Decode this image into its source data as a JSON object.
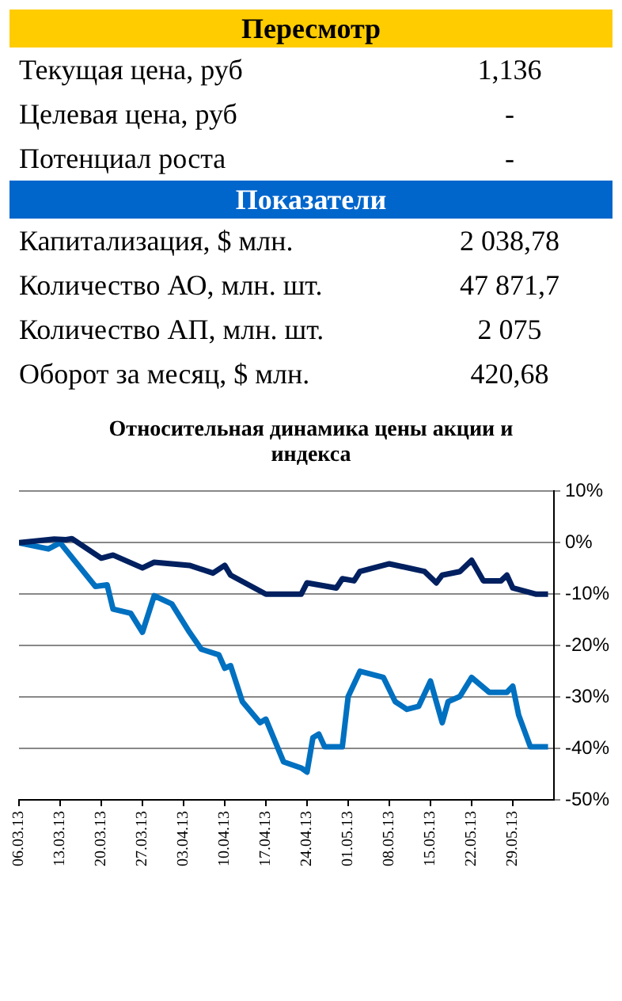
{
  "chart_data": [
    {
      "type": "other",
      "title": "Пересмотр",
      "color": "#ffcc00",
      "annotations": [
        "Текущая цена, руб",
        "1,136",
        "Целевая цена, руб",
        "-",
        "Потенциал роста",
        "-"
      ]
    },
    {
      "type": "other",
      "title": "Показатели",
      "color": "#0066cc",
      "annotations": [
        "Капитализация, $ млн.",
        "2 038,78",
        "Количество АО, млн. шт.",
        "47 871,7",
        "Количество АП, млн. шт.",
        "2 075",
        "Оборот за месяц, $ млн.",
        "420,68"
      ]
    },
    {
      "type": "line",
      "title": "Относительная динамика цены акции и индекса",
      "ylim": [
        -50,
        10
      ],
      "yticks": [
        {
          "value": 10,
          "label": "10%"
        },
        {
          "value": 0,
          "label": "0%"
        },
        {
          "value": -10,
          "label": "-10%"
        },
        {
          "value": -20,
          "label": "-20%"
        },
        {
          "value": -30,
          "label": "-30%"
        },
        {
          "value": -40,
          "label": "-40%"
        },
        {
          "value": -50,
          "label": "-50%"
        }
      ],
      "xlim": [
        "--03-06",
        "--06-05"
      ],
      "xticks": [
        {
          "value": "--03-06",
          "label": "06.03.13"
        },
        {
          "value": "--03-13",
          "label": "13.03.13"
        },
        {
          "value": "--03-20",
          "label": "20.03.13"
        },
        {
          "value": "--03-27",
          "label": "27.03.13"
        },
        {
          "value": "--04-03",
          "label": "03.04.13"
        },
        {
          "value": "--04-10",
          "label": "10.04.13"
        },
        {
          "value": "--04-17",
          "label": "17.04.13"
        },
        {
          "value": "--04-24",
          "label": "24.04.13"
        },
        {
          "value": "--05-01",
          "label": "01.05.13"
        },
        {
          "value": "--05-08",
          "label": "08.05.13"
        },
        {
          "value": "--05-15",
          "label": "15.05.13"
        },
        {
          "value": "--05-22",
          "label": "22.05.13"
        },
        {
          "value": "--05-29",
          "label": "29.05.13"
        }
      ],
      "grid": "y",
      "marker": "none",
      "series": [
        {
          "color": "#002060",
          "x": [
            "--03-06",
            "--03-12",
            "--03-14",
            "--03-15",
            "--03-20",
            "--03-22",
            "--03-27",
            "--03-29",
            "--04-04",
            "--04-08",
            "--04-10",
            "--04-11",
            "--04-17",
            "--04-23",
            "--04-24",
            "--04-29",
            "--04-30",
            "--05-02",
            "--05-03",
            "--05-08",
            "--05-14",
            "--05-16",
            "--05-17",
            "--05-20",
            "--05-22",
            "--05-24",
            "--05-27",
            "--05-28",
            "--05-29",
            "--06-02",
            "--06-04"
          ],
          "values": [
            0,
            0.7,
            0.6,
            0.8,
            -3,
            -2.4,
            -4.9,
            -3.8,
            -4.4,
            -5.9,
            -4.4,
            -6.3,
            -10,
            -10,
            -7.8,
            -8.8,
            -7,
            -7.4,
            -5.6,
            -4.1,
            -5.6,
            -7.8,
            -6.3,
            -5.6,
            -3.4,
            -7.4,
            -7.4,
            -6.3,
            -8.8,
            -10,
            -10
          ]
        },
        {
          "color": "#0070c0",
          "x": [
            "--03-06",
            "--03-11",
            "--03-13",
            "--03-19",
            "--03-21",
            "--03-22",
            "--03-25",
            "--03-27",
            "--03-29",
            "--04-01",
            "--04-04",
            "--04-06",
            "--04-09",
            "--04-10",
            "--04-11",
            "--04-13",
            "--04-16",
            "--04-17",
            "--04-20",
            "--04-23",
            "--04-24",
            "--04-25",
            "--04-26",
            "--04-27",
            "--04-30",
            "--05-01",
            "--05-03",
            "--05-07",
            "--05-09",
            "--05-11",
            "--05-13",
            "--05-15",
            "--05-17",
            "--05-18",
            "--05-20",
            "--05-22",
            "--05-25",
            "--05-28",
            "--05-29",
            "--05-30",
            "--06-01",
            "--06-04"
          ],
          "values": [
            0,
            -1.2,
            0,
            -8.5,
            -8.2,
            -12.9,
            -13.7,
            -17.4,
            -10.3,
            -11.9,
            -17.4,
            -20.7,
            -21.8,
            -24.4,
            -23.9,
            -30.9,
            -35,
            -34.3,
            -42.6,
            -43.8,
            -44.6,
            -37.9,
            -37.2,
            -39.7,
            -39.7,
            -29.9,
            -25,
            -26.2,
            -30.9,
            -32.4,
            -31.8,
            -26.9,
            -35,
            -30.9,
            -29.9,
            -26.2,
            -29.1,
            -29.1,
            -27.9,
            -33.5,
            -39.7,
            -39.7
          ]
        }
      ]
    }
  ]
}
